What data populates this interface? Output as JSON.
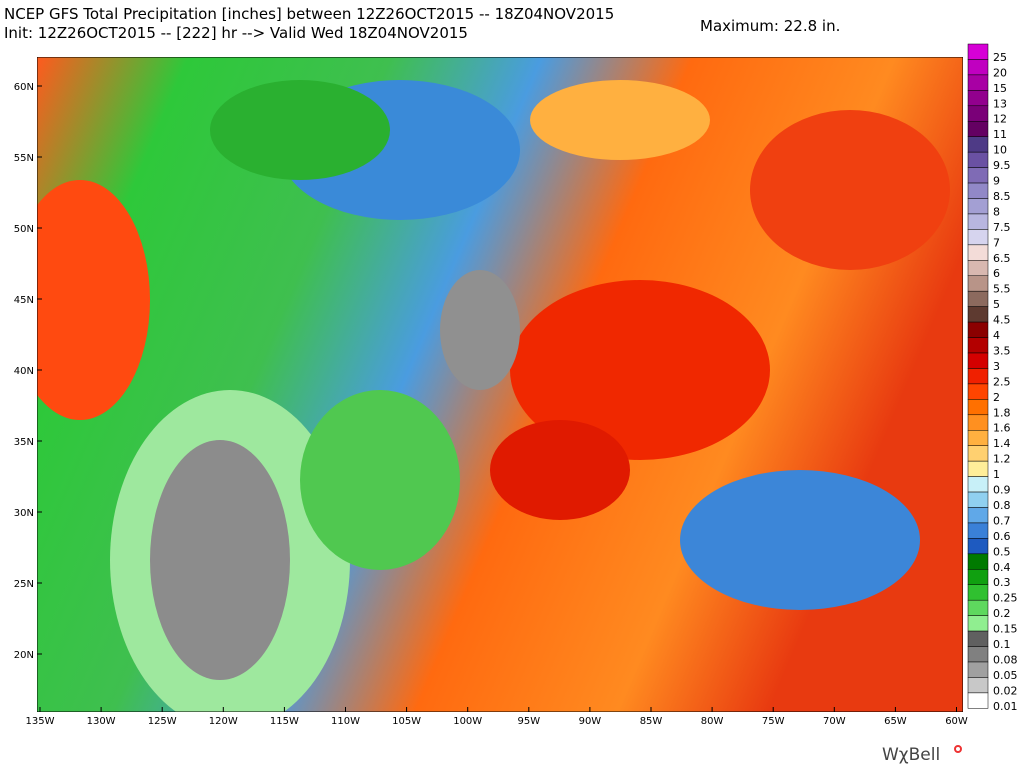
{
  "header": {
    "title": "NCEP GFS Total Precipitation [inches] between 12Z26OCT2015 -- 18Z04NOV2015",
    "subtitle": "Init: 12Z26OCT2015 -- [222] hr --> Valid Wed 18Z04NOV2015",
    "maximum": "Maximum: 22.8 in."
  },
  "map": {
    "latitude_labels": [
      "60N",
      "55N",
      "50N",
      "45N",
      "40N",
      "35N",
      "30N",
      "25N",
      "20N"
    ],
    "longitude_labels": [
      "135W",
      "130W",
      "125W",
      "120W",
      "115W",
      "110W",
      "105W",
      "100W",
      "95W",
      "90W",
      "85W",
      "80W",
      "75W",
      "70W",
      "65W",
      "60W"
    ]
  },
  "legend": {
    "levels": [
      25,
      20,
      15,
      13,
      12,
      11,
      10,
      9.5,
      9,
      8.5,
      8,
      7.5,
      7,
      6.5,
      6,
      5.5,
      5,
      4.5,
      4,
      3.5,
      3,
      2.5,
      2,
      1.8,
      1.6,
      1.4,
      1.2,
      1,
      0.9,
      0.8,
      0.7,
      0.6,
      0.5,
      0.4,
      0.3,
      0.25,
      0.2,
      0.15,
      0.1,
      0.08,
      0.05,
      0.02,
      0.01
    ],
    "colors": [
      "#d600d6",
      "#c000c0",
      "#a800a4",
      "#92008e",
      "#7a0078",
      "#640062",
      "#4e3a86",
      "#6a51a3",
      "#7f6bb5",
      "#9188c7",
      "#a39fd3",
      "#b8b6e0",
      "#d6d4ee",
      "#f3dcd8",
      "#d8b8b0",
      "#b89488",
      "#8c6a5e",
      "#5e3a30",
      "#8b0000",
      "#b30000",
      "#d40000",
      "#f02000",
      "#ff4500",
      "#ff7000",
      "#ff9020",
      "#ffb040",
      "#ffd070",
      "#ffee99",
      "#c8f0f8",
      "#90d0f0",
      "#60a8e8",
      "#3a80d8",
      "#1e5ac0",
      "#007a00",
      "#10a010",
      "#30c030",
      "#5ed85e",
      "#90ee90",
      "#606060",
      "#808080",
      "#a0a0a0",
      "#c8c8c8",
      "#ffffff"
    ]
  },
  "logo": "WχBell"
}
